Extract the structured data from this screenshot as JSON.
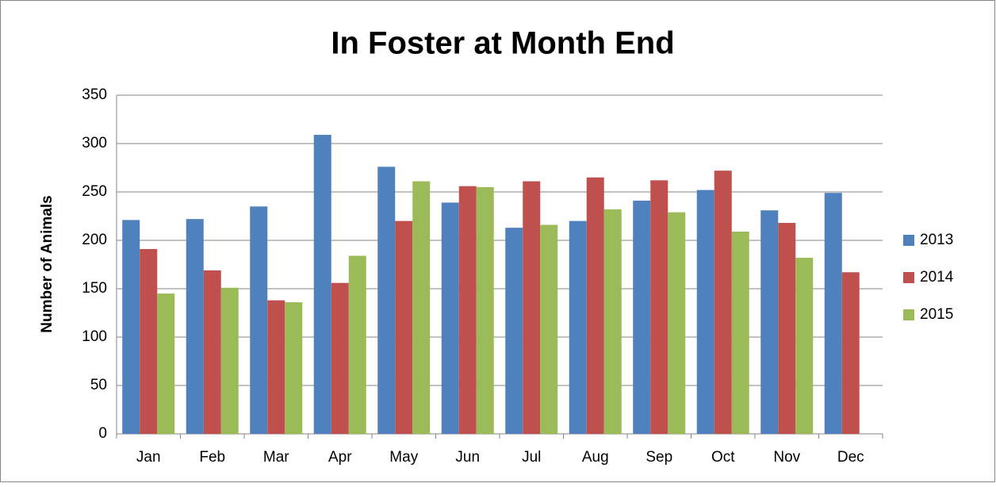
{
  "chart_data": {
    "type": "bar",
    "title": "In Foster at Month End",
    "y_label": "Number of Animals",
    "categories": [
      "Jan",
      "Feb",
      "Mar",
      "Apr",
      "May",
      "Jun",
      "Jul",
      "Aug",
      "Sep",
      "Oct",
      "Nov",
      "Dec"
    ],
    "series": [
      {
        "name": "2013",
        "color": "#4f81bd",
        "values": [
          221,
          222,
          235,
          309,
          276,
          239,
          213,
          220,
          241,
          252,
          231,
          249
        ]
      },
      {
        "name": "2014",
        "color": "#c0504d",
        "values": [
          191,
          169,
          138,
          156,
          220,
          256,
          261,
          265,
          262,
          272,
          218,
          167
        ]
      },
      {
        "name": "2015",
        "color": "#9bbb59",
        "values": [
          145,
          151,
          136,
          184,
          261,
          255,
          216,
          232,
          229,
          209,
          182,
          null
        ]
      }
    ],
    "ylim": [
      0,
      350
    ],
    "yticks": [
      0,
      50,
      100,
      150,
      200,
      250,
      300,
      350
    ],
    "grid": true,
    "legend": "right"
  }
}
